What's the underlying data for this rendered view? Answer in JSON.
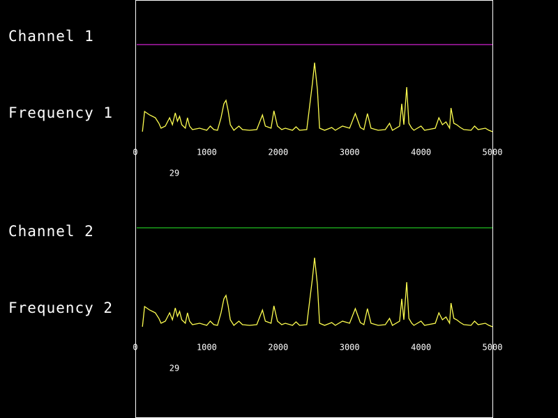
{
  "panels": [
    {
      "channel_label": "Channel 1",
      "frequency_label": "Frequency 1",
      "channel_color": "#d020d0",
      "spectrum_color": "#ffff50",
      "xlim": [
        0,
        5000
      ],
      "xticks": [
        0,
        1000,
        2000,
        3000,
        4000,
        5000
      ],
      "marker": "29",
      "spectrum": {
        "x": [
          100,
          130,
          200,
          280,
          330,
          360,
          420,
          480,
          520,
          560,
          590,
          620,
          650,
          700,
          730,
          760,
          800,
          900,
          1000,
          1050,
          1100,
          1150,
          1200,
          1240,
          1270,
          1300,
          1330,
          1380,
          1450,
          1500,
          1600,
          1700,
          1780,
          1820,
          1900,
          1940,
          1990,
          2050,
          2100,
          2200,
          2250,
          2300,
          2400,
          2480,
          2510,
          2550,
          2580,
          2650,
          2750,
          2800,
          2900,
          3000,
          3080,
          3150,
          3200,
          3250,
          3300,
          3400,
          3500,
          3560,
          3600,
          3700,
          3730,
          3760,
          3800,
          3830,
          3870,
          3900,
          4000,
          4050,
          4100,
          4200,
          4250,
          4300,
          4350,
          4400,
          4420,
          4460,
          4500,
          4550,
          4600,
          4700,
          4750,
          4800,
          4900,
          4950,
          5000
        ],
        "values": [
          0,
          29,
          24,
          20,
          12,
          5,
          8,
          20,
          10,
          27,
          15,
          22,
          10,
          5,
          20,
          8,
          3,
          5,
          2,
          8,
          3,
          2,
          20,
          40,
          45,
          30,
          10,
          2,
          8,
          3,
          2,
          3,
          24,
          8,
          5,
          30,
          8,
          3,
          5,
          2,
          7,
          2,
          3,
          70,
          99,
          60,
          5,
          2,
          6,
          2,
          8,
          5,
          26,
          6,
          3,
          26,
          5,
          2,
          3,
          12,
          2,
          8,
          40,
          10,
          64,
          12,
          5,
          2,
          8,
          2,
          3,
          5,
          20,
          10,
          14,
          5,
          34,
          12,
          10,
          6,
          3,
          2,
          8,
          3,
          5,
          2,
          0
        ]
      }
    },
    {
      "channel_label": "Channel 2",
      "frequency_label": "Frequency 2",
      "channel_color": "#20c020",
      "spectrum_color": "#ffff50",
      "xlim": [
        0,
        5000
      ],
      "xticks": [
        0,
        1000,
        2000,
        3000,
        4000,
        5000
      ],
      "marker": "29",
      "spectrum": {
        "x": [
          100,
          130,
          200,
          280,
          330,
          360,
          420,
          480,
          520,
          560,
          590,
          620,
          650,
          700,
          730,
          760,
          800,
          900,
          1000,
          1050,
          1100,
          1150,
          1200,
          1240,
          1270,
          1300,
          1330,
          1380,
          1450,
          1500,
          1600,
          1700,
          1780,
          1820,
          1900,
          1940,
          1990,
          2050,
          2100,
          2200,
          2250,
          2300,
          2400,
          2480,
          2510,
          2550,
          2580,
          2650,
          2750,
          2800,
          2900,
          3000,
          3080,
          3150,
          3200,
          3250,
          3300,
          3400,
          3500,
          3560,
          3600,
          3700,
          3730,
          3760,
          3800,
          3830,
          3870,
          3900,
          4000,
          4050,
          4100,
          4200,
          4250,
          4300,
          4350,
          4400,
          4420,
          4460,
          4500,
          4550,
          4600,
          4700,
          4750,
          4800,
          4900,
          4950,
          5000
        ],
        "values": [
          0,
          29,
          24,
          20,
          12,
          5,
          8,
          20,
          10,
          27,
          15,
          22,
          10,
          5,
          20,
          8,
          3,
          5,
          2,
          8,
          3,
          2,
          20,
          40,
          45,
          30,
          10,
          2,
          8,
          3,
          2,
          3,
          24,
          8,
          5,
          30,
          8,
          3,
          5,
          2,
          7,
          2,
          3,
          70,
          99,
          60,
          5,
          2,
          6,
          2,
          8,
          5,
          26,
          6,
          3,
          26,
          5,
          2,
          3,
          12,
          2,
          8,
          40,
          10,
          64,
          12,
          5,
          2,
          8,
          2,
          3,
          5,
          20,
          10,
          14,
          5,
          34,
          12,
          10,
          6,
          3,
          2,
          8,
          3,
          5,
          2,
          0
        ]
      }
    }
  ]
}
